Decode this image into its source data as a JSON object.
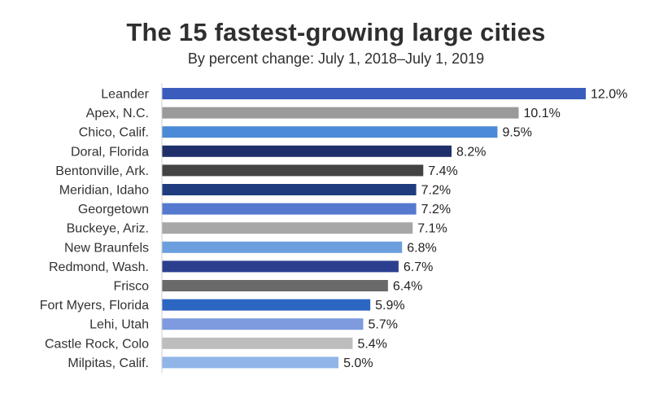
{
  "chart_data": {
    "type": "bar",
    "orientation": "horizontal",
    "title": "The 15 fastest-growing large cities",
    "subtitle": "By percent change: July 1, 2018–July 1, 2019",
    "xlabel": "",
    "ylabel": "",
    "xlim": [
      0,
      12.0
    ],
    "grid": false,
    "categories": [
      "Leander",
      "Apex, N.C.",
      "Chico, Calif.",
      "Doral, Florida",
      "Bentonville, Ark.",
      "Meridian, Idaho",
      "Georgetown",
      "Buckeye, Ariz.",
      "New Braunfels",
      "Redmond, Wash.",
      "Frisco",
      "Fort Myers, Florida",
      "Lehi, Utah",
      "Castle Rock, Colo",
      "Milpitas, Calif."
    ],
    "values": [
      12.0,
      10.1,
      9.5,
      8.2,
      7.4,
      7.2,
      7.2,
      7.1,
      6.8,
      6.7,
      6.4,
      5.9,
      5.7,
      5.4,
      5.0
    ],
    "value_labels": [
      "12.0%",
      "10.1%",
      "9.5%",
      "8.2%",
      "7.4%",
      "7.2%",
      "7.2%",
      "7.1%",
      "6.8%",
      "6.7%",
      "6.4%",
      "5.9%",
      "5.7%",
      "5.4%",
      "5.0%"
    ],
    "colors": [
      "#3a5dbd",
      "#9a9a9a",
      "#4a8ad6",
      "#1f2f6b",
      "#434343",
      "#1f3d7e",
      "#5479cf",
      "#a7a7a7",
      "#6c9fdd",
      "#2c3f8f",
      "#6a6a6a",
      "#2a66c2",
      "#7e9be0",
      "#bdbdbd",
      "#90b6e8"
    ]
  }
}
